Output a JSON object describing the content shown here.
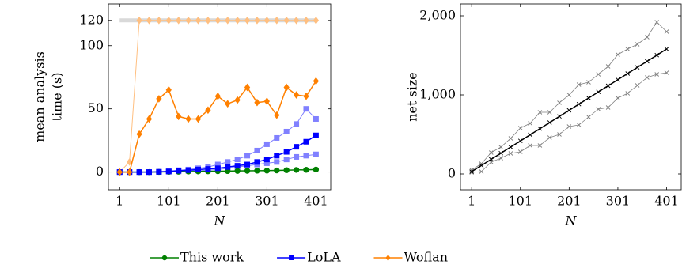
{
  "chart_data": [
    {
      "type": "line",
      "xlabel": "N",
      "ylabel": [
        "mean analysis",
        "time (s)"
      ],
      "x": [
        1,
        21,
        41,
        61,
        81,
        101,
        121,
        141,
        161,
        181,
        201,
        221,
        241,
        261,
        281,
        301,
        321,
        341,
        361,
        381,
        401
      ],
      "xlim": [
        -22,
        431
      ],
      "xticks": [
        1,
        101,
        201,
        301,
        401
      ],
      "ylim": [
        -14,
        133
      ],
      "yticks": [
        0,
        50,
        100,
        120
      ],
      "series": [
        {
          "color": "#d9d9d9",
          "marker": "none",
          "line_width": 5,
          "values": [
            120,
            120,
            120,
            120,
            120,
            120,
            120,
            120,
            120,
            120,
            120,
            120,
            120,
            120,
            120,
            120,
            120,
            120,
            120,
            120,
            120
          ]
        },
        {
          "color": "#ffbf80",
          "marker": "diamond",
          "line_width": 1,
          "values": [
            0,
            8,
            120,
            120,
            120,
            120,
            120,
            120,
            120,
            120,
            120,
            120,
            120,
            120,
            120,
            120,
            120,
            120,
            120,
            120,
            120
          ]
        },
        {
          "color": "#8080ff",
          "marker": "square",
          "line_width": 1,
          "values": [
            0,
            0,
            0,
            0,
            0.3,
            0.8,
            1.5,
            2,
            3,
            4,
            6,
            8,
            10,
            13,
            17,
            22,
            27,
            32,
            38,
            50,
            42
          ]
        },
        {
          "color": "#8080ff",
          "marker": "square",
          "line_width": 1,
          "values": [
            0,
            0,
            0,
            0,
            0.1,
            0.3,
            0.5,
            1,
            1.2,
            1.5,
            2,
            3,
            4,
            5,
            6,
            7,
            8,
            10,
            12,
            13,
            14
          ]
        },
        {
          "name": "This work",
          "color": "#008000",
          "marker": "circle",
          "line_width": 1.5,
          "values": [
            0,
            0,
            0,
            0,
            0.1,
            0.2,
            0.3,
            0.4,
            0.5,
            0.6,
            0.7,
            0.8,
            0.9,
            1,
            1.1,
            1.2,
            1.3,
            1.5,
            1.7,
            1.8,
            2
          ]
        },
        {
          "name": "LoLA",
          "color": "#0000ff",
          "marker": "square",
          "line_width": 1.5,
          "values": [
            0,
            0,
            0,
            0,
            0.2,
            0.5,
            1,
            1.5,
            2,
            2.5,
            3,
            4,
            5,
            6,
            8,
            10,
            13,
            16,
            20,
            24,
            29
          ]
        },
        {
          "name": "Woflan",
          "color": "#ff8000",
          "marker": "diamond",
          "line_width": 1.5,
          "values": [
            0,
            0,
            30,
            42,
            58,
            65,
            44,
            42,
            42,
            49,
            60,
            54,
            57,
            67,
            55,
            56,
            45,
            67,
            61,
            60,
            72
          ]
        }
      ]
    },
    {
      "type": "line",
      "xlabel": "N",
      "ylabel": "net size",
      "x": [
        1,
        21,
        41,
        61,
        81,
        101,
        121,
        141,
        161,
        181,
        201,
        221,
        241,
        261,
        281,
        301,
        321,
        341,
        361,
        381,
        401
      ],
      "xlim": [
        -22,
        431
      ],
      "xticks": [
        1,
        101,
        201,
        301,
        401
      ],
      "ylim": [
        -200,
        2150
      ],
      "yticks": [
        0,
        {
          "value": 1000,
          "label": "1,000"
        },
        {
          "value": 2000,
          "label": "2,000"
        }
      ],
      "series": [
        {
          "color": "#808080",
          "marker": "x",
          "line_width": 0.8,
          "values": [
            50,
            130,
            270,
            340,
            450,
            580,
            640,
            780,
            780,
            900,
            1000,
            1130,
            1160,
            1260,
            1360,
            1510,
            1580,
            1640,
            1730,
            1920,
            1800
          ]
        },
        {
          "color": "#808080",
          "marker": "x",
          "line_width": 0.8,
          "values": [
            20,
            30,
            150,
            200,
            260,
            280,
            360,
            360,
            460,
            500,
            600,
            620,
            720,
            820,
            840,
            960,
            1020,
            1120,
            1220,
            1260,
            1280
          ]
        },
        {
          "color": "#000000",
          "marker": "x",
          "line_width": 1.5,
          "values": [
            30,
            108,
            185,
            263,
            340,
            418,
            495,
            573,
            650,
            728,
            805,
            883,
            960,
            1038,
            1115,
            1193,
            1270,
            1348,
            1425,
            1503,
            1580
          ]
        }
      ]
    }
  ]
}
